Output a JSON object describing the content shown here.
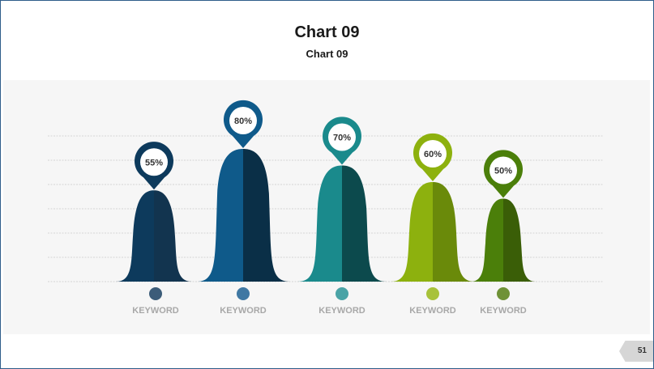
{
  "slide": {
    "title": "Chart 09",
    "subtitle": "Chart 09",
    "page_number": "51"
  },
  "chart_data": {
    "type": "bar",
    "title": "Chart 09",
    "categories": [
      "KEYWORD",
      "KEYWORD",
      "KEYWORD",
      "KEYWORD",
      "KEYWORD"
    ],
    "values": [
      55,
      80,
      70,
      60,
      50
    ],
    "labels": [
      "55%",
      "80%",
      "70%",
      "60%",
      "50%"
    ],
    "colors_light": [
      "#0d3a5c",
      "#0f5a8a",
      "#1a8a8c",
      "#8db10e",
      "#4b7f0a"
    ],
    "colors_dark": [
      "#12344f",
      "#0a2f47",
      "#0c4a4d",
      "#6a8a0a",
      "#3a5e07"
    ],
    "dot_colors": [
      "#3c5c79",
      "#3f78a3",
      "#4aa3a6",
      "#a8c23a",
      "#6f9237"
    ],
    "grid": true,
    "ylim": [
      0,
      100
    ]
  }
}
